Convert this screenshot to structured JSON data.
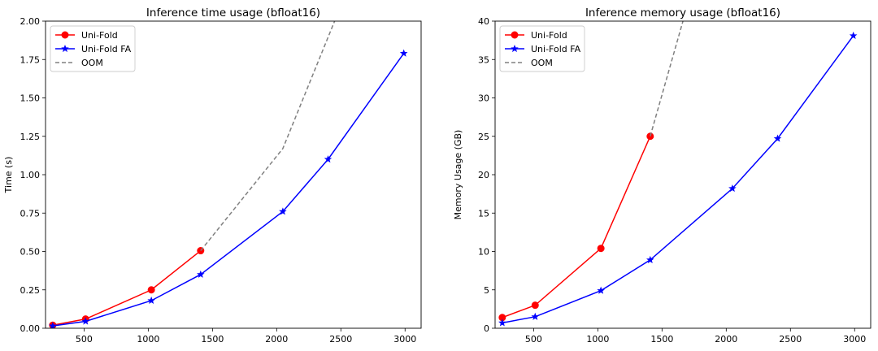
{
  "chart_data": [
    {
      "type": "line",
      "title": "Inference time usage (bfloat16)",
      "xlabel": "",
      "ylabel": "Time (s)",
      "xlim": [
        200,
        3125
      ],
      "ylim": [
        0,
        2.0
      ],
      "xticks": [
        500,
        1000,
        1500,
        2000,
        2500,
        3000
      ],
      "yticks": [
        0.0,
        0.25,
        0.5,
        0.75,
        1.0,
        1.25,
        1.5,
        1.75,
        2.0
      ],
      "ytick_labels": [
        "0.00",
        "0.25",
        "0.50",
        "0.75",
        "1.00",
        "1.25",
        "1.50",
        "1.75",
        "2.00"
      ],
      "grid": false,
      "legend_position": "top-left",
      "series": [
        {
          "name": "Uni-Fold",
          "color": "#ff0000",
          "marker": "circle",
          "dash": false,
          "x": [
            256,
            512,
            1024,
            1408
          ],
          "y": [
            0.02,
            0.06,
            0.25,
            0.505
          ]
        },
        {
          "name": "Uni-Fold FA",
          "color": "#0000ff",
          "marker": "star",
          "dash": false,
          "x": [
            256,
            512,
            1024,
            1408,
            2048,
            2400,
            2990
          ],
          "y": [
            0.015,
            0.045,
            0.18,
            0.35,
            0.76,
            1.1,
            1.79
          ]
        },
        {
          "name": "OOM",
          "color": "#808080",
          "marker": "none",
          "dash": true,
          "x": [
            1408,
            2048,
            2500
          ],
          "y": [
            0.505,
            1.17,
            2.1
          ]
        }
      ]
    },
    {
      "type": "line",
      "title": "Inference memory usage (bfloat16)",
      "xlabel": "",
      "ylabel": "Memory Usage (GB)",
      "xlim": [
        200,
        3125
      ],
      "ylim": [
        0,
        40
      ],
      "xticks": [
        500,
        1000,
        1500,
        2000,
        2500,
        3000
      ],
      "yticks": [
        0,
        5,
        10,
        15,
        20,
        25,
        30,
        35,
        40
      ],
      "ytick_labels": [
        "0",
        "5",
        "10",
        "15",
        "20",
        "25",
        "30",
        "35",
        "40"
      ],
      "grid": false,
      "legend_position": "top-left",
      "series": [
        {
          "name": "Uni-Fold",
          "color": "#ff0000",
          "marker": "circle",
          "dash": false,
          "x": [
            256,
            512,
            1024,
            1408
          ],
          "y": [
            1.4,
            3.0,
            10.4,
            25.0
          ]
        },
        {
          "name": "Uni-Fold FA",
          "color": "#0000ff",
          "marker": "star",
          "dash": false,
          "x": [
            256,
            512,
            1024,
            1408,
            2048,
            2400,
            2990
          ],
          "y": [
            0.7,
            1.5,
            4.9,
            8.9,
            18.2,
            24.7,
            38.1
          ]
        },
        {
          "name": "OOM",
          "color": "#808080",
          "marker": "none",
          "dash": true,
          "x": [
            1408,
            1680
          ],
          "y": [
            25.0,
            41.0
          ]
        }
      ]
    }
  ]
}
